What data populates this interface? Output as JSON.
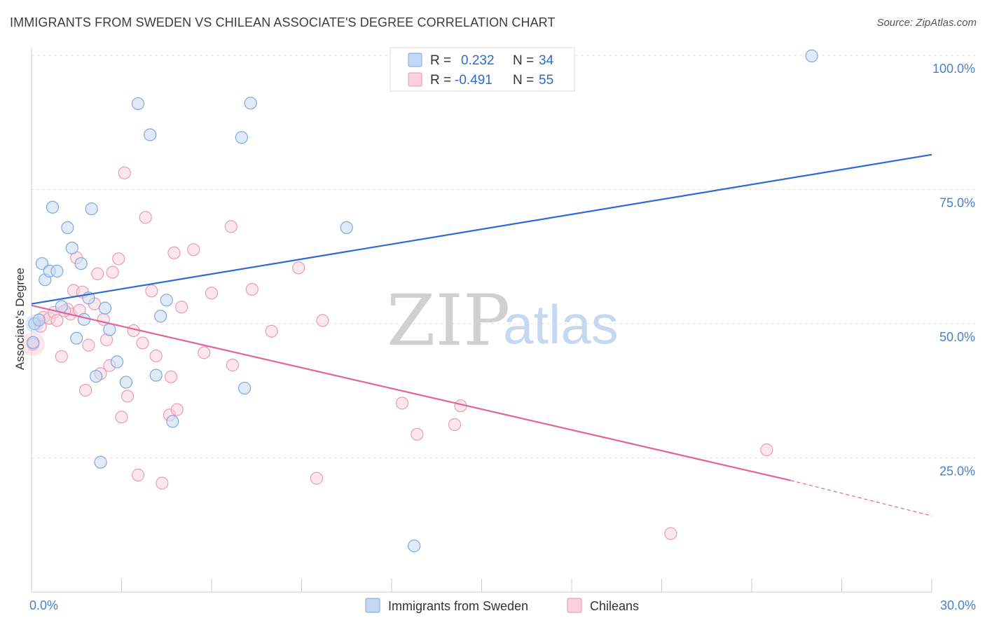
{
  "header": {
    "title": "IMMIGRANTS FROM SWEDEN VS CHILEAN ASSOCIATE'S DEGREE CORRELATION CHART",
    "source": "Source: ZipAtlas.com"
  },
  "watermark": {
    "zip": "ZIP",
    "atlas": "atlas"
  },
  "legend": {
    "rows": [
      {
        "r_label": "R =",
        "r_value": "0.232",
        "n_label": "N =",
        "n_value": "34",
        "color": "#a9c6ee"
      },
      {
        "r_label": "R =",
        "r_value": "-0.491",
        "n_label": "N =",
        "n_value": "55",
        "color": "#f4b6c9"
      }
    ]
  },
  "bottom_legend": {
    "items": [
      {
        "label": "Immigrants from Sweden",
        "color": "#a9c6ee"
      },
      {
        "label": "Chileans",
        "color": "#f4b6c9"
      }
    ]
  },
  "chart_data": {
    "type": "scatter",
    "title": "IMMIGRANTS FROM SWEDEN VS CHILEAN ASSOCIATE'S DEGREE CORRELATION CHART",
    "xlabel": "",
    "ylabel": "Associate's Degree",
    "xlim": [
      0,
      30
    ],
    "ylim": [
      0,
      103
    ],
    "x_tick_labels": [
      "0.0%",
      "30.0%"
    ],
    "y_ticks": [
      25,
      50,
      75,
      100
    ],
    "y_tick_labels": [
      "25.0%",
      "50.0%",
      "75.0%",
      "100.0%"
    ],
    "grid": true,
    "colors": {
      "sweden_point": "#a9c6ee",
      "sweden_line": "#2a6ccf",
      "chile_point": "#f4b6c9",
      "chile_line": "#e0649a"
    },
    "series": [
      {
        "name": "Immigrants from Sweden",
        "trend": {
          "x": [
            0,
            30
          ],
          "y": [
            53.7,
            81.5
          ]
        },
        "points": [
          {
            "x": 0.1,
            "y": 50.0
          },
          {
            "x": 0.35,
            "y": 61.2
          },
          {
            "x": 0.45,
            "y": 58.2
          },
          {
            "x": 0.6,
            "y": 59.8
          },
          {
            "x": 0.7,
            "y": 71.7
          },
          {
            "x": 0.85,
            "y": 59.8
          },
          {
            "x": 1.0,
            "y": 53.2
          },
          {
            "x": 1.2,
            "y": 67.9
          },
          {
            "x": 1.35,
            "y": 64.1
          },
          {
            "x": 1.5,
            "y": 47.3
          },
          {
            "x": 1.65,
            "y": 61.2
          },
          {
            "x": 1.75,
            "y": 50.8
          },
          {
            "x": 1.9,
            "y": 54.8
          },
          {
            "x": 2.0,
            "y": 71.4
          },
          {
            "x": 2.15,
            "y": 40.2
          },
          {
            "x": 2.3,
            "y": 24.2
          },
          {
            "x": 2.45,
            "y": 52.9
          },
          {
            "x": 2.6,
            "y": 48.9
          },
          {
            "x": 2.85,
            "y": 42.9
          },
          {
            "x": 3.15,
            "y": 39.1
          },
          {
            "x": 3.55,
            "y": 91.0
          },
          {
            "x": 3.95,
            "y": 85.2
          },
          {
            "x": 4.15,
            "y": 40.4
          },
          {
            "x": 4.3,
            "y": 51.4
          },
          {
            "x": 4.5,
            "y": 54.4
          },
          {
            "x": 4.7,
            "y": 31.8
          },
          {
            "x": 7.0,
            "y": 84.7
          },
          {
            "x": 7.1,
            "y": 38.0
          },
          {
            "x": 7.3,
            "y": 91.1
          },
          {
            "x": 10.5,
            "y": 67.9
          },
          {
            "x": 12.75,
            "y": 8.6
          },
          {
            "x": 26.0,
            "y": 99.9
          },
          {
            "x": 0.05,
            "y": 46.5
          },
          {
            "x": 0.25,
            "y": 50.7
          }
        ]
      },
      {
        "name": "Chileans",
        "trend": {
          "x": [
            0,
            25.3
          ],
          "y": [
            53.4,
            20.8
          ]
        },
        "trend_dashed": {
          "x": [
            25.3,
            30
          ],
          "y": [
            20.8,
            14.2
          ]
        },
        "points": [
          {
            "x": 0.05,
            "y": 46.2
          },
          {
            "x": 0.4,
            "y": 51.2
          },
          {
            "x": 0.6,
            "y": 51.0
          },
          {
            "x": 0.75,
            "y": 52.1
          },
          {
            "x": 0.85,
            "y": 50.6
          },
          {
            "x": 1.0,
            "y": 43.9
          },
          {
            "x": 1.2,
            "y": 52.7
          },
          {
            "x": 1.3,
            "y": 51.8
          },
          {
            "x": 1.4,
            "y": 56.2
          },
          {
            "x": 1.5,
            "y": 62.3
          },
          {
            "x": 1.6,
            "y": 52.5
          },
          {
            "x": 1.7,
            "y": 55.9
          },
          {
            "x": 1.8,
            "y": 37.6
          },
          {
            "x": 1.9,
            "y": 46.0
          },
          {
            "x": 2.1,
            "y": 53.7
          },
          {
            "x": 2.2,
            "y": 59.3
          },
          {
            "x": 2.3,
            "y": 40.7
          },
          {
            "x": 2.4,
            "y": 50.8
          },
          {
            "x": 2.5,
            "y": 47.0
          },
          {
            "x": 2.6,
            "y": 42.2
          },
          {
            "x": 2.7,
            "y": 59.6
          },
          {
            "x": 2.9,
            "y": 62.1
          },
          {
            "x": 3.0,
            "y": 32.6
          },
          {
            "x": 3.1,
            "y": 78.1
          },
          {
            "x": 3.2,
            "y": 36.5
          },
          {
            "x": 3.4,
            "y": 48.7
          },
          {
            "x": 3.55,
            "y": 21.8
          },
          {
            "x": 3.7,
            "y": 46.4
          },
          {
            "x": 3.8,
            "y": 69.8
          },
          {
            "x": 4.0,
            "y": 56.1
          },
          {
            "x": 4.15,
            "y": 44.0
          },
          {
            "x": 4.35,
            "y": 20.3
          },
          {
            "x": 4.6,
            "y": 33.0
          },
          {
            "x": 4.65,
            "y": 40.1
          },
          {
            "x": 4.75,
            "y": 63.2
          },
          {
            "x": 4.85,
            "y": 34.0
          },
          {
            "x": 5.0,
            "y": 53.1
          },
          {
            "x": 5.4,
            "y": 63.8
          },
          {
            "x": 5.75,
            "y": 44.6
          },
          {
            "x": 6.0,
            "y": 55.7
          },
          {
            "x": 6.65,
            "y": 68.1
          },
          {
            "x": 6.7,
            "y": 42.3
          },
          {
            "x": 7.35,
            "y": 56.4
          },
          {
            "x": 8.0,
            "y": 48.6
          },
          {
            "x": 8.9,
            "y": 60.4
          },
          {
            "x": 9.5,
            "y": 21.2
          },
          {
            "x": 9.7,
            "y": 50.6
          },
          {
            "x": 12.35,
            "y": 35.2
          },
          {
            "x": 12.85,
            "y": 29.4
          },
          {
            "x": 14.1,
            "y": 31.2
          },
          {
            "x": 14.3,
            "y": 34.7
          },
          {
            "x": 24.5,
            "y": 26.5
          },
          {
            "x": 21.3,
            "y": 10.9
          },
          {
            "x": 0.3,
            "y": 49.5
          },
          {
            "x": 1.1,
            "y": 52.4
          }
        ]
      }
    ]
  }
}
